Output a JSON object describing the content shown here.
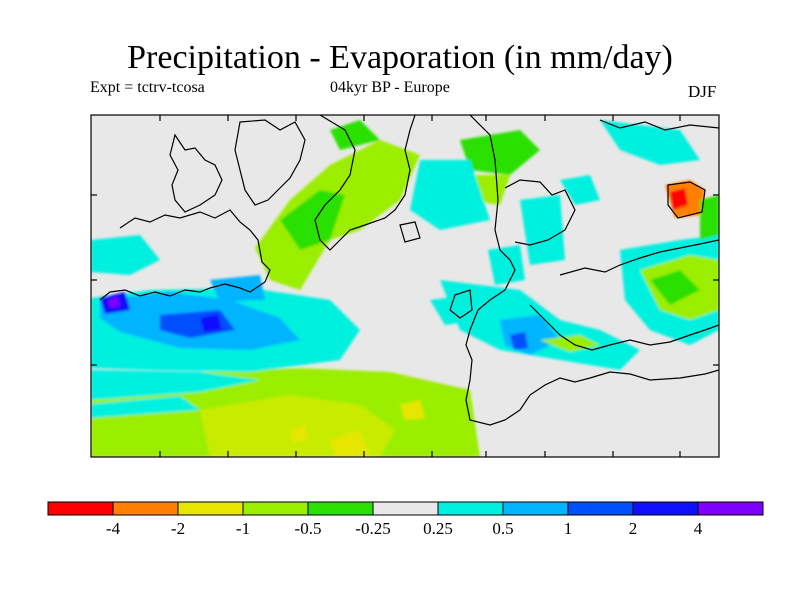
{
  "title": "Precipitation - Evaporation (in mm/day)",
  "experiment": "Expt = tctrv-tcosa",
  "period": "04kyr BP - Europe",
  "season": "DJF",
  "legend": {
    "colors": [
      "#ff0000",
      "#ff8000",
      "#e6e600",
      "#9bee00",
      "#2be000",
      "#e8e8e8",
      "#00f0e0",
      "#00b4ff",
      "#0050ff",
      "#1010ff",
      "#8000ff"
    ],
    "labels": [
      "-4",
      "-2",
      "-1",
      "-0.5",
      "-0.25",
      "0.25",
      "0.5",
      "1",
      "2",
      "4"
    ]
  }
}
